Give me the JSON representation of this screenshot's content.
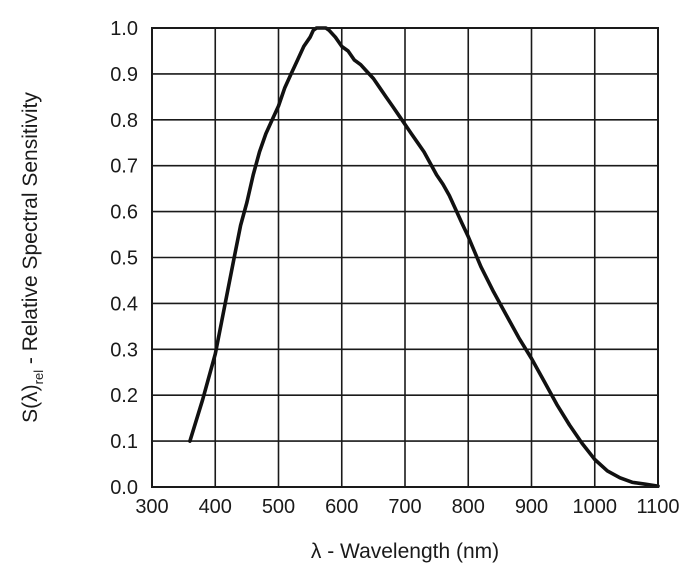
{
  "chart_data": {
    "type": "line",
    "title": "",
    "xlabel": "λ - Wavelength (nm)",
    "ylabel": {
      "prefix": "S(λ)",
      "subscript": "rel",
      "suffix": " - Relative Spectral Sensitivity"
    },
    "xlim": [
      300,
      1100
    ],
    "ylim": [
      0,
      1.0
    ],
    "xticks": [
      300,
      400,
      500,
      600,
      700,
      800,
      900,
      1000,
      1100
    ],
    "xtick_labels": [
      "300",
      "400",
      "500",
      "600",
      "700",
      "800",
      "900",
      "1000",
      "1100"
    ],
    "yticks": [
      0,
      0.1,
      0.2,
      0.3,
      0.4,
      0.5,
      0.6,
      0.7,
      0.8,
      0.9,
      1.0
    ],
    "ytick_labels": [
      "0.0",
      "0.1",
      "0.2",
      "0.3",
      "0.4",
      "0.5",
      "0.6",
      "0.7",
      "0.8",
      "0.9",
      "1.0"
    ],
    "grid": true,
    "series": [
      {
        "color": "#111111",
        "x": [
          360,
          380,
          400,
          410,
          420,
          430,
          440,
          450,
          460,
          470,
          480,
          490,
          500,
          510,
          520,
          530,
          540,
          550,
          555,
          560,
          565,
          570,
          575,
          580,
          590,
          600,
          610,
          620,
          630,
          640,
          650,
          660,
          670,
          680,
          690,
          700,
          710,
          720,
          730,
          740,
          750,
          760,
          770,
          780,
          790,
          800,
          820,
          840,
          860,
          880,
          900,
          920,
          940,
          960,
          980,
          1000,
          1020,
          1040,
          1060,
          1080,
          1100
        ],
        "y": [
          0.1,
          0.19,
          0.29,
          0.36,
          0.43,
          0.5,
          0.57,
          0.62,
          0.68,
          0.73,
          0.77,
          0.8,
          0.83,
          0.87,
          0.9,
          0.93,
          0.96,
          0.98,
          0.995,
          1.0,
          1.0,
          1.0,
          1.0,
          0.995,
          0.98,
          0.96,
          0.95,
          0.93,
          0.92,
          0.905,
          0.89,
          0.87,
          0.85,
          0.83,
          0.81,
          0.79,
          0.77,
          0.75,
          0.73,
          0.705,
          0.68,
          0.66,
          0.635,
          0.605,
          0.575,
          0.545,
          0.48,
          0.425,
          0.375,
          0.325,
          0.28,
          0.23,
          0.18,
          0.135,
          0.095,
          0.06,
          0.035,
          0.02,
          0.01,
          0.006,
          0.002
        ]
      }
    ]
  }
}
